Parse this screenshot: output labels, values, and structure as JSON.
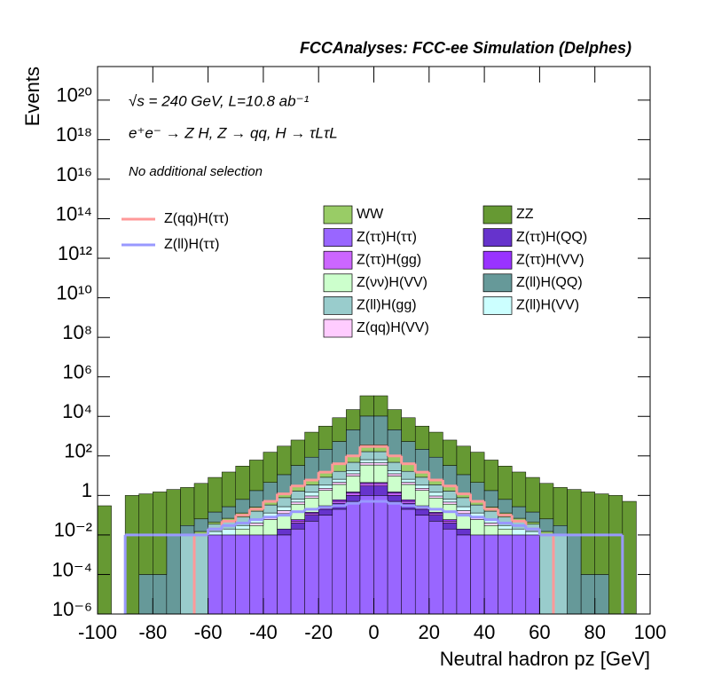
{
  "chart_data": {
    "type": "histogram",
    "title": "FCCAnalyses: FCC-ee Simulation (Delphes)",
    "annotations": [
      "√s = 240 GeV, L=10.8 ab⁻¹",
      "e⁺e⁻ → Z H, Z → qq, H → τLτL",
      "No additional selection"
    ],
    "x_label": "Neutral hadron pz [GeV]",
    "y_label": "Events",
    "log_y": true,
    "xlim": [
      -100,
      100
    ],
    "xticks": [
      -100,
      -80,
      -60,
      -40,
      -20,
      0,
      20,
      40,
      60,
      80,
      100
    ],
    "ylim": [
      1e-06,
      5e+21
    ],
    "yticks": [
      {
        "value": 1e-06,
        "label": "10⁻⁶"
      },
      {
        "value": 0.0001,
        "label": "10⁻⁴"
      },
      {
        "value": 0.01,
        "label": "10⁻²"
      },
      1,
      {
        "value": 100.0,
        "label": "10²"
      },
      {
        "value": 10000.0,
        "label": "10⁴"
      },
      {
        "value": 1000000.0,
        "label": "10⁶"
      },
      {
        "value": 100000000.0,
        "label": "10⁸"
      },
      {
        "value": 10000000000.0,
        "label": "10¹⁰"
      },
      {
        "value": 1000000000000.0,
        "label": "10¹²"
      },
      {
        "value": 100000000000000.0,
        "label": "10¹⁴"
      },
      {
        "value": 1e+16,
        "label": "10¹⁶"
      },
      {
        "value": 1e+18,
        "label": "10¹⁸"
      },
      {
        "value": 1e+20,
        "label": "10²⁰"
      }
    ],
    "bins": [
      -100,
      -95,
      -90,
      -85,
      -80,
      -75,
      -70,
      -65,
      -60,
      -55,
      -50,
      -45,
      -40,
      -35,
      -30,
      -25,
      -20,
      -15,
      -10,
      -5,
      0,
      5,
      10,
      15,
      20,
      25,
      30,
      35,
      40,
      45,
      50,
      55,
      60,
      65,
      70,
      75,
      80,
      85,
      90,
      95,
      100
    ],
    "series": [
      {
        "name": "WW",
        "color": "#99cc66",
        "values": [
          0,
          0,
          0,
          0,
          0,
          0,
          0,
          0.005,
          0.01,
          0.02,
          0.05,
          0.1,
          0.2,
          0.5,
          1.2,
          3,
          8,
          20,
          50,
          200,
          200,
          50,
          20,
          8,
          3,
          1.2,
          0.5,
          0.2,
          0.1,
          0.05,
          0.02,
          0.01,
          0.005,
          0,
          0,
          0,
          0,
          0,
          0,
          0
        ]
      },
      {
        "name": "ZZ",
        "color": "#669933",
        "values": [
          0.3,
          0,
          1,
          1.2,
          1.5,
          2,
          2.5,
          4,
          8,
          15,
          30,
          60,
          150,
          300,
          600,
          1500,
          3000,
          8000,
          20000,
          100000,
          100000,
          20000,
          8000,
          3000,
          1500,
          600,
          300,
          150,
          60,
          30,
          15,
          8,
          4,
          2.5,
          2,
          1.5,
          1.2,
          1,
          0.5,
          0
        ]
      },
      {
        "name": "Z(ττ)H(ττ)",
        "color": "#9966ff",
        "values": [
          0,
          0,
          0,
          0,
          0,
          0,
          0,
          0,
          0.01,
          0.01,
          0.01,
          0.01,
          0.01,
          0.01,
          0.02,
          0.05,
          0.1,
          0.2,
          0.5,
          1,
          1,
          0.5,
          0.2,
          0.1,
          0.05,
          0.02,
          0.01,
          0.01,
          0.01,
          0.01,
          0.01,
          0.01,
          0,
          0,
          0,
          0,
          0,
          0,
          0,
          0
        ]
      },
      {
        "name": "Z(ττ)H(QQ)",
        "color": "#6633cc",
        "values": [
          0,
          0,
          0,
          0,
          0,
          0,
          0,
          0,
          0,
          0,
          0,
          0,
          0,
          0.01,
          0.02,
          0.05,
          0.1,
          0.2,
          0.5,
          2,
          2,
          0.5,
          0.2,
          0.1,
          0.05,
          0.02,
          0.01,
          0,
          0,
          0,
          0,
          0,
          0,
          0,
          0,
          0,
          0,
          0,
          0,
          0
        ]
      },
      {
        "name": "Z(ττ)H(gg)",
        "color": "#cc66ff",
        "values": [
          0,
          0,
          0,
          0,
          0,
          0,
          0,
          0,
          0,
          0,
          0,
          0,
          0,
          0,
          0.01,
          0.02,
          0.05,
          0.1,
          0.3,
          1,
          1,
          0.3,
          0.1,
          0.05,
          0.02,
          0.01,
          0,
          0,
          0,
          0,
          0,
          0,
          0,
          0,
          0,
          0,
          0,
          0,
          0,
          0
        ]
      },
      {
        "name": "Z(ττ)H(VV)",
        "color": "#9933ff",
        "values": [
          0,
          0,
          0,
          0,
          0,
          0,
          0,
          0,
          0,
          0,
          0,
          0,
          0,
          0,
          0.01,
          0.02,
          0.05,
          0.1,
          0.2,
          0.5,
          0.5,
          0.2,
          0.1,
          0.05,
          0.02,
          0.01,
          0,
          0,
          0,
          0,
          0,
          0,
          0,
          0,
          0,
          0,
          0,
          0,
          0,
          0
        ]
      },
      {
        "name": "Z(νν)H(VV)",
        "color": "#ccffcc",
        "values": [
          0,
          0,
          0,
          0,
          0,
          0,
          0,
          0,
          0,
          0,
          0.01,
          0.02,
          0.05,
          0.1,
          0.3,
          0.6,
          1.5,
          3,
          8,
          30,
          30,
          8,
          3,
          1.5,
          0.6,
          0.3,
          0.1,
          0.05,
          0.02,
          0.01,
          0,
          0,
          0,
          0,
          0,
          0,
          0,
          0,
          0,
          0
        ]
      },
      {
        "name": "Z(ll)H(QQ)",
        "color": "#669999",
        "values": [
          0,
          0,
          0,
          0.0001,
          0.0001,
          0.01,
          0.02,
          0.05,
          0.1,
          0.2,
          0.5,
          1.5,
          4,
          10,
          30,
          80,
          200,
          500,
          2000,
          10000,
          10000,
          2000,
          500,
          200,
          80,
          30,
          10,
          4,
          1.5,
          0.5,
          0.2,
          0.1,
          0.05,
          0.02,
          0.01,
          0.0001,
          0.0001,
          0,
          0,
          0
        ]
      },
      {
        "name": "Z(ll)H(gg)",
        "color": "#99cccc",
        "values": [
          0,
          0,
          0,
          0,
          0,
          0,
          0.01,
          0.01,
          0.02,
          0.03,
          0.05,
          0.1,
          0.2,
          0.5,
          1,
          2,
          5,
          10,
          30,
          100,
          100,
          30,
          10,
          5,
          2,
          1,
          0.5,
          0.2,
          0.1,
          0.05,
          0.03,
          0.02,
          0.01,
          0.01,
          0,
          0,
          0,
          0,
          0,
          0
        ]
      },
      {
        "name": "Z(ll)H(VV)",
        "color": "#ccffff",
        "values": [
          0,
          0,
          0,
          0,
          0,
          0,
          0,
          0,
          0.005,
          0.01,
          0.01,
          0.02,
          0.05,
          0.1,
          0.2,
          0.5,
          1,
          2,
          5,
          20,
          20,
          5,
          2,
          1,
          0.5,
          0.2,
          0.1,
          0.05,
          0.02,
          0.01,
          0.01,
          0.005,
          0,
          0,
          0,
          0,
          0,
          0,
          0,
          0
        ]
      },
      {
        "name": "Z(qq)H(VV)",
        "color": "#ffccff",
        "values": [
          0,
          0,
          0,
          0,
          0,
          0,
          0,
          0,
          0,
          0,
          0,
          0.01,
          0.02,
          0.05,
          0.1,
          0.2,
          0.5,
          1,
          3,
          10,
          10,
          3,
          1,
          0.5,
          0.2,
          0.1,
          0.05,
          0.02,
          0.01,
          0,
          0,
          0,
          0,
          0,
          0,
          0,
          0,
          0,
          0,
          0
        ]
      }
    ],
    "line_series": [
      {
        "name": "Z(qq)H(ττ)",
        "color": "#ff9999",
        "values": [
          0,
          0,
          0,
          0,
          0,
          0,
          0,
          0.01,
          0.02,
          0.05,
          0.1,
          0.2,
          0.5,
          1.2,
          3,
          6,
          15,
          40,
          100,
          300,
          300,
          100,
          40,
          15,
          6,
          3,
          1.2,
          0.5,
          0.2,
          0.1,
          0.05,
          0.02,
          0.01,
          0,
          0,
          0,
          0,
          0,
          0,
          0
        ]
      },
      {
        "name": "Z(ll)H(ττ)",
        "color": "#9999ff",
        "values": [
          0,
          0,
          0.01,
          0.01,
          0.01,
          0.01,
          0.01,
          0.01,
          0.02,
          0.03,
          0.04,
          0.06,
          0.08,
          0.1,
          0.15,
          0.2,
          0.25,
          0.3,
          0.4,
          0.5,
          0.5,
          0.4,
          0.3,
          0.25,
          0.2,
          0.15,
          0.1,
          0.08,
          0.06,
          0.04,
          0.03,
          0.02,
          0.01,
          0.01,
          0.01,
          0.01,
          0.01,
          0.01,
          0,
          0
        ]
      }
    ]
  }
}
